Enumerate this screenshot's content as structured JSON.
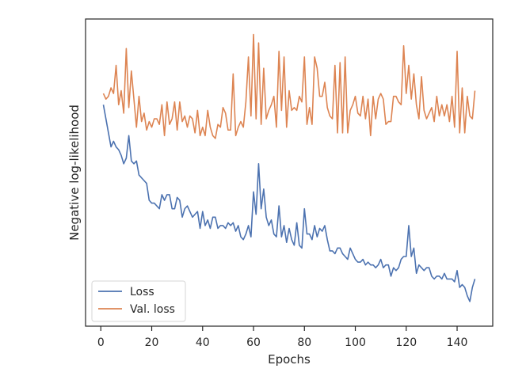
{
  "chart_data": {
    "type": "line",
    "title": "",
    "xlabel": "Epochs",
    "ylabel": "Negative log-likelihood",
    "xlim": [
      -6,
      154
    ],
    "ylim": [
      0,
      1
    ],
    "x_ticks": [
      0,
      20,
      40,
      60,
      80,
      100,
      120,
      140
    ],
    "y_ticks_shown": false,
    "grid": false,
    "legend_position": "lower-left",
    "x": [
      1,
      2,
      3,
      4,
      5,
      6,
      7,
      8,
      9,
      10,
      11,
      12,
      13,
      14,
      15,
      16,
      17,
      18,
      19,
      20,
      21,
      22,
      23,
      24,
      25,
      26,
      27,
      28,
      29,
      30,
      31,
      32,
      33,
      34,
      35,
      36,
      37,
      38,
      39,
      40,
      41,
      42,
      43,
      44,
      45,
      46,
      47,
      48,
      49,
      50,
      51,
      52,
      53,
      54,
      55,
      56,
      57,
      58,
      59,
      60,
      61,
      62,
      63,
      64,
      65,
      66,
      67,
      68,
      69,
      70,
      71,
      72,
      73,
      74,
      75,
      76,
      77,
      78,
      79,
      80,
      81,
      82,
      83,
      84,
      85,
      86,
      87,
      88,
      89,
      90,
      91,
      92,
      93,
      94,
      95,
      96,
      97,
      98,
      99,
      100,
      101,
      102,
      103,
      104,
      105,
      106,
      107,
      108,
      109,
      110,
      111,
      112,
      113,
      114,
      115,
      116,
      117,
      118,
      119,
      120,
      121,
      122,
      123,
      124,
      125,
      126,
      127,
      128,
      129,
      130,
      131,
      132,
      133,
      134,
      135,
      136,
      137,
      138,
      139,
      140,
      141,
      142,
      143,
      144,
      145,
      146,
      147
    ],
    "series": [
      {
        "name": "Loss",
        "color": "#4c72b0",
        "values": [
          0.74,
          0.69,
          0.64,
          0.59,
          0.61,
          0.59,
          0.58,
          0.56,
          0.53,
          0.55,
          0.63,
          0.54,
          0.53,
          0.54,
          0.49,
          0.48,
          0.47,
          0.46,
          0.4,
          0.39,
          0.39,
          0.38,
          0.37,
          0.42,
          0.4,
          0.42,
          0.42,
          0.37,
          0.37,
          0.41,
          0.4,
          0.34,
          0.37,
          0.38,
          0.36,
          0.34,
          0.35,
          0.36,
          0.3,
          0.36,
          0.31,
          0.33,
          0.3,
          0.34,
          0.34,
          0.3,
          0.31,
          0.31,
          0.3,
          0.32,
          0.31,
          0.32,
          0.29,
          0.31,
          0.27,
          0.26,
          0.28,
          0.31,
          0.27,
          0.43,
          0.35,
          0.53,
          0.37,
          0.44,
          0.34,
          0.31,
          0.33,
          0.28,
          0.27,
          0.38,
          0.27,
          0.31,
          0.25,
          0.3,
          0.26,
          0.24,
          0.32,
          0.24,
          0.23,
          0.37,
          0.28,
          0.28,
          0.26,
          0.31,
          0.27,
          0.3,
          0.29,
          0.31,
          0.26,
          0.22,
          0.22,
          0.21,
          0.23,
          0.23,
          0.21,
          0.2,
          0.19,
          0.23,
          0.21,
          0.19,
          0.18,
          0.18,
          0.19,
          0.17,
          0.18,
          0.17,
          0.17,
          0.16,
          0.17,
          0.19,
          0.16,
          0.17,
          0.17,
          0.13,
          0.16,
          0.15,
          0.16,
          0.19,
          0.2,
          0.2,
          0.31,
          0.2,
          0.23,
          0.14,
          0.17,
          0.16,
          0.15,
          0.16,
          0.16,
          0.13,
          0.12,
          0.13,
          0.13,
          0.12,
          0.14,
          0.12,
          0.12,
          0.12,
          0.11,
          0.15,
          0.09,
          0.1,
          0.09,
          0.06,
          0.04,
          0.09,
          0.12
        ]
      },
      {
        "name": "Val. loss",
        "color": "#dd8452",
        "values": [
          0.78,
          0.76,
          0.77,
          0.8,
          0.78,
          0.88,
          0.74,
          0.79,
          0.71,
          0.94,
          0.73,
          0.86,
          0.76,
          0.66,
          0.77,
          0.68,
          0.71,
          0.65,
          0.68,
          0.66,
          0.69,
          0.69,
          0.67,
          0.74,
          0.63,
          0.75,
          0.67,
          0.69,
          0.75,
          0.65,
          0.75,
          0.68,
          0.7,
          0.66,
          0.7,
          0.69,
          0.64,
          0.72,
          0.63,
          0.66,
          0.63,
          0.72,
          0.66,
          0.63,
          0.62,
          0.67,
          0.66,
          0.73,
          0.71,
          0.65,
          0.65,
          0.85,
          0.63,
          0.66,
          0.68,
          0.66,
          0.75,
          0.91,
          0.7,
          0.99,
          0.69,
          0.96,
          0.67,
          0.87,
          0.69,
          0.72,
          0.74,
          0.77,
          0.66,
          0.93,
          0.72,
          0.91,
          0.66,
          0.79,
          0.72,
          0.73,
          0.72,
          0.77,
          0.75,
          0.91,
          0.67,
          0.73,
          0.67,
          0.91,
          0.87,
          0.77,
          0.77,
          0.82,
          0.73,
          0.7,
          0.69,
          0.88,
          0.64,
          0.89,
          0.64,
          0.91,
          0.64,
          0.72,
          0.74,
          0.77,
          0.71,
          0.7,
          0.77,
          0.69,
          0.76,
          0.63,
          0.77,
          0.69,
          0.76,
          0.78,
          0.76,
          0.67,
          0.68,
          0.68,
          0.77,
          0.77,
          0.75,
          0.74,
          0.95,
          0.78,
          0.88,
          0.76,
          0.85,
          0.74,
          0.69,
          0.84,
          0.72,
          0.69,
          0.71,
          0.73,
          0.68,
          0.77,
          0.7,
          0.74,
          0.7,
          0.74,
          0.68,
          0.77,
          0.66,
          0.93,
          0.64,
          0.8,
          0.64,
          0.77,
          0.7,
          0.69,
          0.79
        ]
      }
    ]
  }
}
